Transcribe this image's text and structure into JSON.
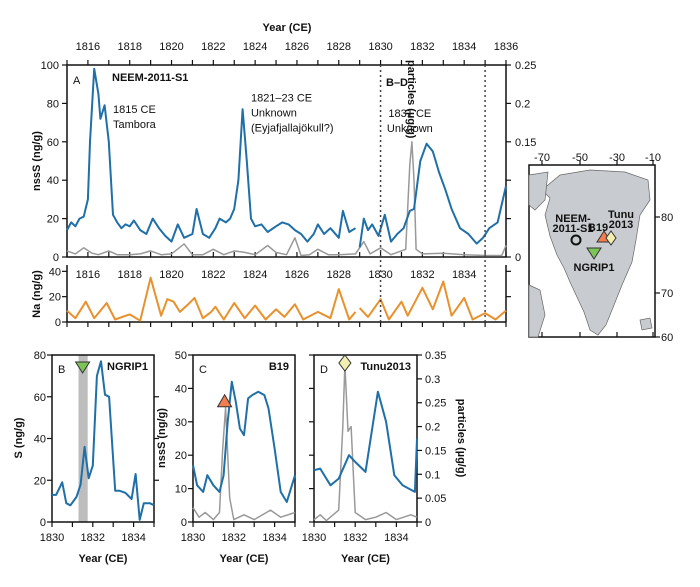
{
  "colors": {
    "nssS": "#1f6fa8",
    "Na": "#e8912d",
    "particles": "#999999",
    "ngrip": "#7cc35a",
    "b19": "#f07e4f",
    "tunu": "#f3efb0",
    "map_land": "#c8ccd0",
    "band": "#bdbdbd"
  },
  "chart_data": [
    {
      "panel": "A",
      "type": "line",
      "title": "NEEM-2011-S1",
      "xlabel": "Year (CE)",
      "xlim": [
        1815,
        1836
      ],
      "xticks": [
        1816,
        1818,
        1820,
        1822,
        1824,
        1826,
        1828,
        1830,
        1832,
        1834,
        1836
      ],
      "ylabel": "nssS (ng/g)",
      "ylim": [
        0,
        100
      ],
      "yticks": [
        0,
        20,
        40,
        60,
        80,
        100
      ],
      "y2label": "particles (µg/g)",
      "y2lim": [
        0,
        0.25
      ],
      "y2ticks": [
        0,
        0.15,
        0.2,
        0.25
      ],
      "region_label": "B–D",
      "dashed_lines": [
        1830,
        1835
      ],
      "annotations": [
        {
          "lines": [
            "1815 CE",
            "Tambora"
          ],
          "year": 1817.2,
          "value": 75
        },
        {
          "lines": [
            "1821–23 CE",
            "Unknown",
            "(Eyjafjallajökull?)"
          ],
          "year": 1823.8,
          "value": 81
        },
        {
          "lines": [
            "1831 CE",
            "Unknown"
          ],
          "year": 1831.4,
          "value": 73
        }
      ],
      "series": [
        {
          "name": "nssS",
          "axis": "left",
          "x": [
            1815,
            1815.2,
            1815.4,
            1815.6,
            1815.8,
            1816,
            1816.1,
            1816.3,
            1816.5,
            1816.6,
            1816.8,
            1817,
            1817.2,
            1817.4,
            1817.6,
            1817.8,
            1818,
            1818.2,
            1818.5,
            1818.8,
            1819.1,
            1819.4,
            1819.7,
            1820,
            1820.3,
            1820.6,
            1821,
            1821.2,
            1821.5,
            1821.8,
            1822.1,
            1822.3,
            1822.6,
            1822.8,
            1823,
            1823.2,
            1823.4,
            1823.6,
            1823.8,
            1824,
            1824.3,
            1824.6,
            1825,
            1825.3,
            1825.6,
            1825.9,
            1826.2,
            1826.5,
            1826.8,
            1827,
            1827.3,
            1827.6,
            1828,
            1828.2,
            1828.5,
            1828.8,
            null,
            1829,
            1829.2,
            1829.4,
            1829.6,
            1829.9,
            1830.2,
            1830.5,
            1830.8,
            1831.1,
            1831.4,
            1831.6,
            1831.9,
            1832.2,
            1832.5,
            1832.8,
            1833.1,
            1833.4,
            1833.8,
            1834.2,
            1834.6,
            1834.9,
            1835.2,
            1835.6,
            1836
          ],
          "y": [
            14,
            18,
            16,
            20,
            21,
            30,
            60,
            98,
            85,
            72,
            79,
            60,
            22,
            18,
            15,
            17,
            16,
            19,
            14,
            12,
            20,
            15,
            11,
            8,
            17,
            10,
            12,
            25,
            12,
            10,
            15,
            20,
            18,
            20,
            25,
            40,
            77,
            50,
            20,
            16,
            17,
            13,
            16,
            18,
            17,
            14,
            12,
            8,
            12,
            17,
            12,
            15,
            10,
            24,
            13,
            15,
            null,
            5,
            20,
            14,
            17,
            11,
            22,
            8,
            12,
            15,
            24,
            25,
            50,
            59,
            55,
            44,
            35,
            25,
            15,
            12,
            7,
            10,
            15,
            18,
            37
          ]
        },
        {
          "name": "particles",
          "axis": "right",
          "x": [
            1815,
            1815.4,
            1815.8,
            1816.2,
            1816.5,
            1817,
            1817.4,
            1818,
            1818.5,
            1819,
            1819.5,
            1820,
            1820.6,
            1821,
            1821.5,
            1822,
            1822.5,
            1823,
            1823.5,
            1824,
            1824.6,
            1825,
            1825.5,
            1825.9,
            1826.2,
            1826.6,
            1827,
            1827.5,
            1828,
            1828.8,
            1829.2,
            1829.5,
            1830,
            1830.5,
            1831.2,
            1831.4,
            1831.5,
            1831.6,
            1831.7,
            1832,
            1833,
            1834,
            1835,
            1835.8,
            1836
          ],
          "y": [
            0.008,
            0.004,
            0.012,
            0.005,
            0.003,
            0.008,
            0.003,
            0.003,
            0.004,
            0.008,
            0.003,
            0.004,
            0.017,
            0.003,
            0.003,
            0.01,
            0.003,
            0.008,
            0.006,
            0.003,
            0.015,
            0.006,
            0.003,
            0.025,
            0.002,
            0.003,
            0.01,
            0.003,
            0.003,
            0.004,
            0.02,
            0.004,
            0.012,
            0.003,
            0.01,
            0.12,
            0.15,
            0.1,
            0.01,
            0.004,
            0.005,
            0.003,
            0.002,
            0.002,
            0.015
          ]
        }
      ]
    },
    {
      "panel": "A-Na",
      "type": "line",
      "ylabel": "Na (ng/g)",
      "ylim": [
        0,
        45
      ],
      "yticks": [
        0,
        20,
        40
      ],
      "xticks": [
        1816,
        1818,
        1820,
        1822,
        1824,
        1826,
        1828,
        1830,
        1832,
        1834
      ],
      "series": [
        {
          "name": "Na",
          "axis": "left",
          "x": [
            1815,
            1815.4,
            1815.9,
            1816.3,
            1816.9,
            1817.3,
            1818,
            1818.5,
            1819,
            1819.5,
            1819.8,
            1820.1,
            1820.4,
            1820.8,
            1821.1,
            1821.5,
            1821.9,
            1822.1,
            1822.5,
            1823,
            1823.5,
            1824,
            1824.5,
            1825,
            1825.4,
            1825.9,
            1826.3,
            1827,
            1827.6,
            1828,
            1828.5,
            1828.8,
            null,
            1829,
            1829.4,
            1830,
            1830.4,
            1831,
            1831.3,
            1832,
            1832.5,
            1833,
            1833.4,
            1834,
            1834.4,
            1835,
            1835.5,
            1836
          ],
          "y": [
            9,
            3,
            16,
            3,
            15,
            2,
            6,
            1,
            35,
            5,
            18,
            16,
            8,
            14,
            19,
            3,
            8,
            12,
            2,
            15,
            3,
            13,
            2,
            10,
            4,
            14,
            2,
            8,
            3,
            26,
            2,
            8,
            null,
            11,
            4,
            18,
            2,
            16,
            5,
            27,
            10,
            32,
            5,
            19,
            2,
            7,
            2,
            9
          ]
        }
      ]
    },
    {
      "panel": "B",
      "type": "line",
      "title": "NGRIP1",
      "xlabel": "Year (CE)",
      "xlim": [
        1830,
        1835
      ],
      "xticks": [
        1830,
        1832,
        1834
      ],
      "ylabel": "S (ng/g)",
      "ylim": [
        0,
        80
      ],
      "yticks": [
        0,
        20,
        40,
        60,
        80
      ],
      "shaded_band": [
        1831.3,
        1831.75
      ],
      "marker": {
        "shape": "down-triangle",
        "year": 1831.5
      },
      "series": [
        {
          "name": "S",
          "axis": "left",
          "x": [
            1830,
            1830.2,
            1830.5,
            1830.7,
            1830.9,
            1831.2,
            1831.4,
            1831.6,
            1831.8,
            1832,
            1832.2,
            1832.4,
            1832.6,
            1832.8,
            1833.1,
            1833.3,
            1833.6,
            1833.9,
            1834.1,
            1834.3,
            1834.5,
            1834.8,
            1835
          ],
          "y": [
            13,
            13,
            19,
            9,
            8,
            12,
            18,
            36,
            21,
            27,
            70,
            77,
            61,
            60,
            15,
            15,
            14,
            11,
            23,
            1,
            9,
            9,
            8
          ]
        }
      ]
    },
    {
      "panel": "C",
      "type": "line",
      "title": "B19",
      "xlabel": "Year (CE)",
      "xlim": [
        1830,
        1835
      ],
      "xticks": [
        1830,
        1832,
        1834
      ],
      "ylabel": "nssS (ng/g)",
      "ylim": [
        0,
        50
      ],
      "yticks": [
        0,
        10,
        20,
        30,
        40,
        50
      ],
      "y2lim": [
        0,
        0.35
      ],
      "marker": {
        "shape": "triangle",
        "year": 1831.55,
        "value": 36
      },
      "series": [
        {
          "name": "nssS",
          "axis": "left",
          "x": [
            1830,
            1830.2,
            1830.5,
            1830.7,
            1831,
            1831.3,
            1831.5,
            1831.7,
            1831.9,
            1832.1,
            1832.3,
            1832.5,
            1832.7,
            1832.9,
            1833.2,
            1833.5,
            1833.7,
            1834,
            1834.3,
            1834.6,
            1835
          ],
          "y": [
            17,
            11,
            9,
            14,
            11,
            9,
            14,
            30,
            42,
            36,
            28,
            26,
            37,
            38,
            39,
            38,
            34,
            22,
            9,
            6,
            14
          ]
        },
        {
          "name": "particles",
          "axis": "right",
          "x": [
            1830,
            1830.3,
            1830.6,
            1831,
            1831.3,
            1831.45,
            1831.6,
            1831.8,
            1832,
            1832.5,
            1833,
            1833.8,
            1834.3,
            1835
          ],
          "y": [
            0.03,
            0.01,
            0.02,
            0.005,
            0.02,
            0.15,
            0.24,
            0.05,
            0.005,
            0.015,
            0.005,
            0.025,
            0.01,
            0.02
          ]
        }
      ]
    },
    {
      "panel": "D",
      "type": "line",
      "title": "Tunu2013",
      "xlabel": "Year (CE)",
      "xlim": [
        1830,
        1835
      ],
      "xticks": [
        1830,
        1832,
        1834
      ],
      "ylim": [
        0,
        50
      ],
      "y2label": "particles (µg/g)",
      "y2lim": [
        0,
        0.35
      ],
      "y2ticks": [
        0,
        0.05,
        0.1,
        0.15,
        0.2,
        0.25,
        0.3,
        0.35
      ],
      "marker": {
        "shape": "diamond",
        "year": 1831.5
      },
      "series": [
        {
          "name": "nssS",
          "axis": "left",
          "x": [
            1830,
            1830.3,
            1830.8,
            1831.2,
            1831.7,
            1832,
            1832.5,
            1833.1,
            1833.5,
            1833.9,
            1834.3,
            1834.6,
            1834.9,
            1835
          ],
          "y": [
            15.5,
            16,
            11,
            13,
            20,
            18,
            15,
            39,
            30,
            14,
            11,
            10,
            9,
            25
          ]
        },
        {
          "name": "particles",
          "axis": "right",
          "x": [
            1830,
            1830.3,
            1830.6,
            1831.2,
            1831.4,
            1831.5,
            1831.65,
            1831.8,
            1832,
            1832.5,
            1833,
            1833.5,
            1834,
            1834.7,
            1835
          ],
          "y": [
            0.005,
            0.015,
            0.003,
            0.025,
            0.2,
            0.33,
            0.19,
            0.2,
            0.02,
            0.005,
            0.01,
            0.02,
            0.005,
            0.015,
            0.01
          ]
        }
      ]
    }
  ],
  "map": {
    "lon_ticks": [
      "-70",
      "-50",
      "-30",
      "-10"
    ],
    "lat_ticks": [
      "80",
      "70",
      "60"
    ],
    "sites": [
      {
        "name": "NEEM-2011-S1",
        "label_lines": [
          "NEEM-",
          "2011-S1"
        ],
        "symbol": "circle"
      },
      {
        "name": "B19",
        "label_lines": [
          "B19"
        ],
        "symbol": "triangle"
      },
      {
        "name": "Tunu2013",
        "label_lines": [
          "Tunu",
          "2013"
        ],
        "symbol": "diamond"
      },
      {
        "name": "NGRIP1",
        "label_lines": [
          "NGRIP1"
        ],
        "symbol": "down-triangle"
      }
    ]
  }
}
